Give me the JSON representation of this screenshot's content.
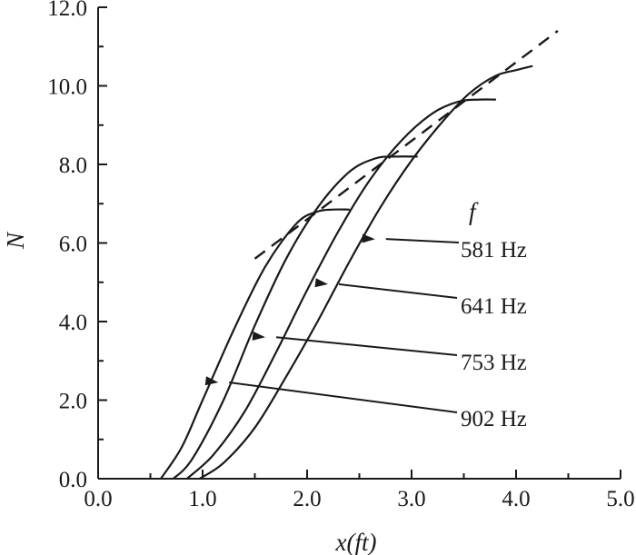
{
  "chart_data": {
    "type": "line",
    "xlabel": "x(ft)",
    "ylabel": "N",
    "xlim": [
      0,
      5
    ],
    "ylim": [
      0,
      12
    ],
    "x_ticks": [
      "0.0",
      "1.0",
      "2.0",
      "3.0",
      "4.0",
      "5.0"
    ],
    "y_ticks": [
      "0.0",
      "2.0",
      "4.0",
      "6.0",
      "8.0",
      "10.0",
      "12.0"
    ],
    "grid": false,
    "legend_title": "f",
    "series": [
      {
        "name": "581 Hz",
        "x": [
          0.97,
          1.2,
          1.5,
          1.8,
          2.1,
          2.4,
          2.7,
          3.0,
          3.3,
          3.55,
          3.8,
          4.0,
          4.15
        ],
        "y": [
          0.0,
          0.4,
          1.3,
          2.6,
          4.0,
          5.5,
          6.9,
          8.1,
          9.1,
          9.8,
          10.25,
          10.4,
          10.5
        ]
      },
      {
        "name": "641 Hz",
        "x": [
          0.85,
          1.1,
          1.4,
          1.7,
          2.0,
          2.3,
          2.6,
          2.9,
          3.2,
          3.45,
          3.65,
          3.8
        ],
        "y": [
          0.0,
          0.6,
          1.7,
          3.2,
          4.8,
          6.3,
          7.6,
          8.6,
          9.3,
          9.6,
          9.65,
          9.65
        ]
      },
      {
        "name": "753 Hz",
        "x": [
          0.72,
          0.9,
          1.2,
          1.5,
          1.8,
          2.1,
          2.4,
          2.65,
          2.85,
          3.05
        ],
        "y": [
          0.0,
          0.5,
          2.0,
          3.9,
          5.6,
          6.9,
          7.8,
          8.15,
          8.2,
          8.2
        ]
      },
      {
        "name": "902 Hz",
        "x": [
          0.6,
          0.8,
          1.0,
          1.3,
          1.6,
          1.9,
          2.1,
          2.25,
          2.4
        ],
        "y": [
          0.0,
          0.8,
          2.0,
          3.8,
          5.4,
          6.5,
          6.8,
          6.85,
          6.85
        ]
      }
    ],
    "envelope": {
      "style": "dashed",
      "x": [
        1.5,
        4.4
      ],
      "y": [
        5.6,
        11.4
      ]
    },
    "annotations": [
      {
        "label": "581 Hz",
        "series": "581 Hz",
        "point": [
          2.65,
          6.1
        ]
      },
      {
        "label": "641 Hz",
        "series": "641 Hz",
        "point": [
          2.2,
          4.95
        ]
      },
      {
        "label": "753 Hz",
        "series": "753 Hz",
        "point": [
          1.6,
          3.6
        ]
      },
      {
        "label": "902 Hz",
        "series": "902 Hz",
        "point": [
          1.15,
          2.45
        ]
      }
    ]
  }
}
